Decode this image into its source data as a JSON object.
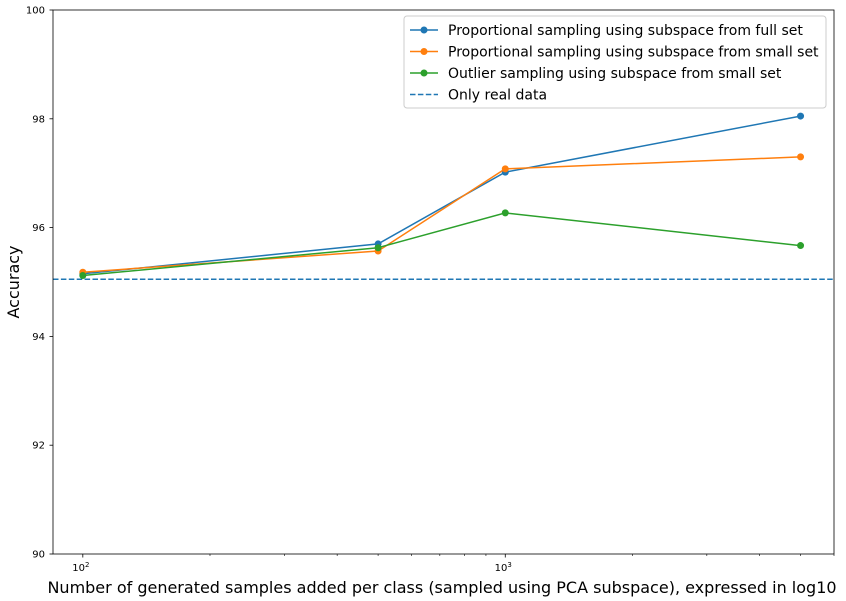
{
  "chart_data": {
    "type": "line",
    "xlabel": "Number of generated samples added per class (sampled using PCA subspace), expressed in log10",
    "ylabel": "Accuracy",
    "x_scale": "log",
    "xlim": [
      85,
      6000
    ],
    "ylim": [
      90,
      100
    ],
    "y_ticks": [
      90,
      92,
      94,
      96,
      98,
      100
    ],
    "x_major_ticks": [
      100,
      1000
    ],
    "x_major_tick_labels": [
      "10",
      "10"
    ],
    "x_major_tick_exponents": [
      "2",
      "3"
    ],
    "x_minor_ticks": [
      200,
      300,
      400,
      500,
      600,
      700,
      800,
      900,
      2000,
      3000,
      4000,
      5000,
      6000
    ],
    "grid": false,
    "legend_position": "top-right",
    "x": [
      100,
      500,
      1000,
      5000
    ],
    "series": [
      {
        "name": "Proportional sampling using subspace from full set",
        "color": "#1f77b4",
        "style": "solid-marker",
        "values": [
          95.15,
          95.7,
          97.02,
          98.05
        ]
      },
      {
        "name": "Proportional sampling using subspace from small set",
        "color": "#ff7f0e",
        "style": "solid-marker",
        "values": [
          95.18,
          95.57,
          97.08,
          97.3
        ]
      },
      {
        "name": "Outlier sampling using subspace from small set",
        "color": "#2ca02c",
        "style": "solid-marker",
        "values": [
          95.12,
          95.63,
          96.27,
          95.67
        ]
      },
      {
        "name": "Only real data",
        "color": "#1f77b4",
        "style": "dashed-hline",
        "value": 95.05
      }
    ]
  }
}
